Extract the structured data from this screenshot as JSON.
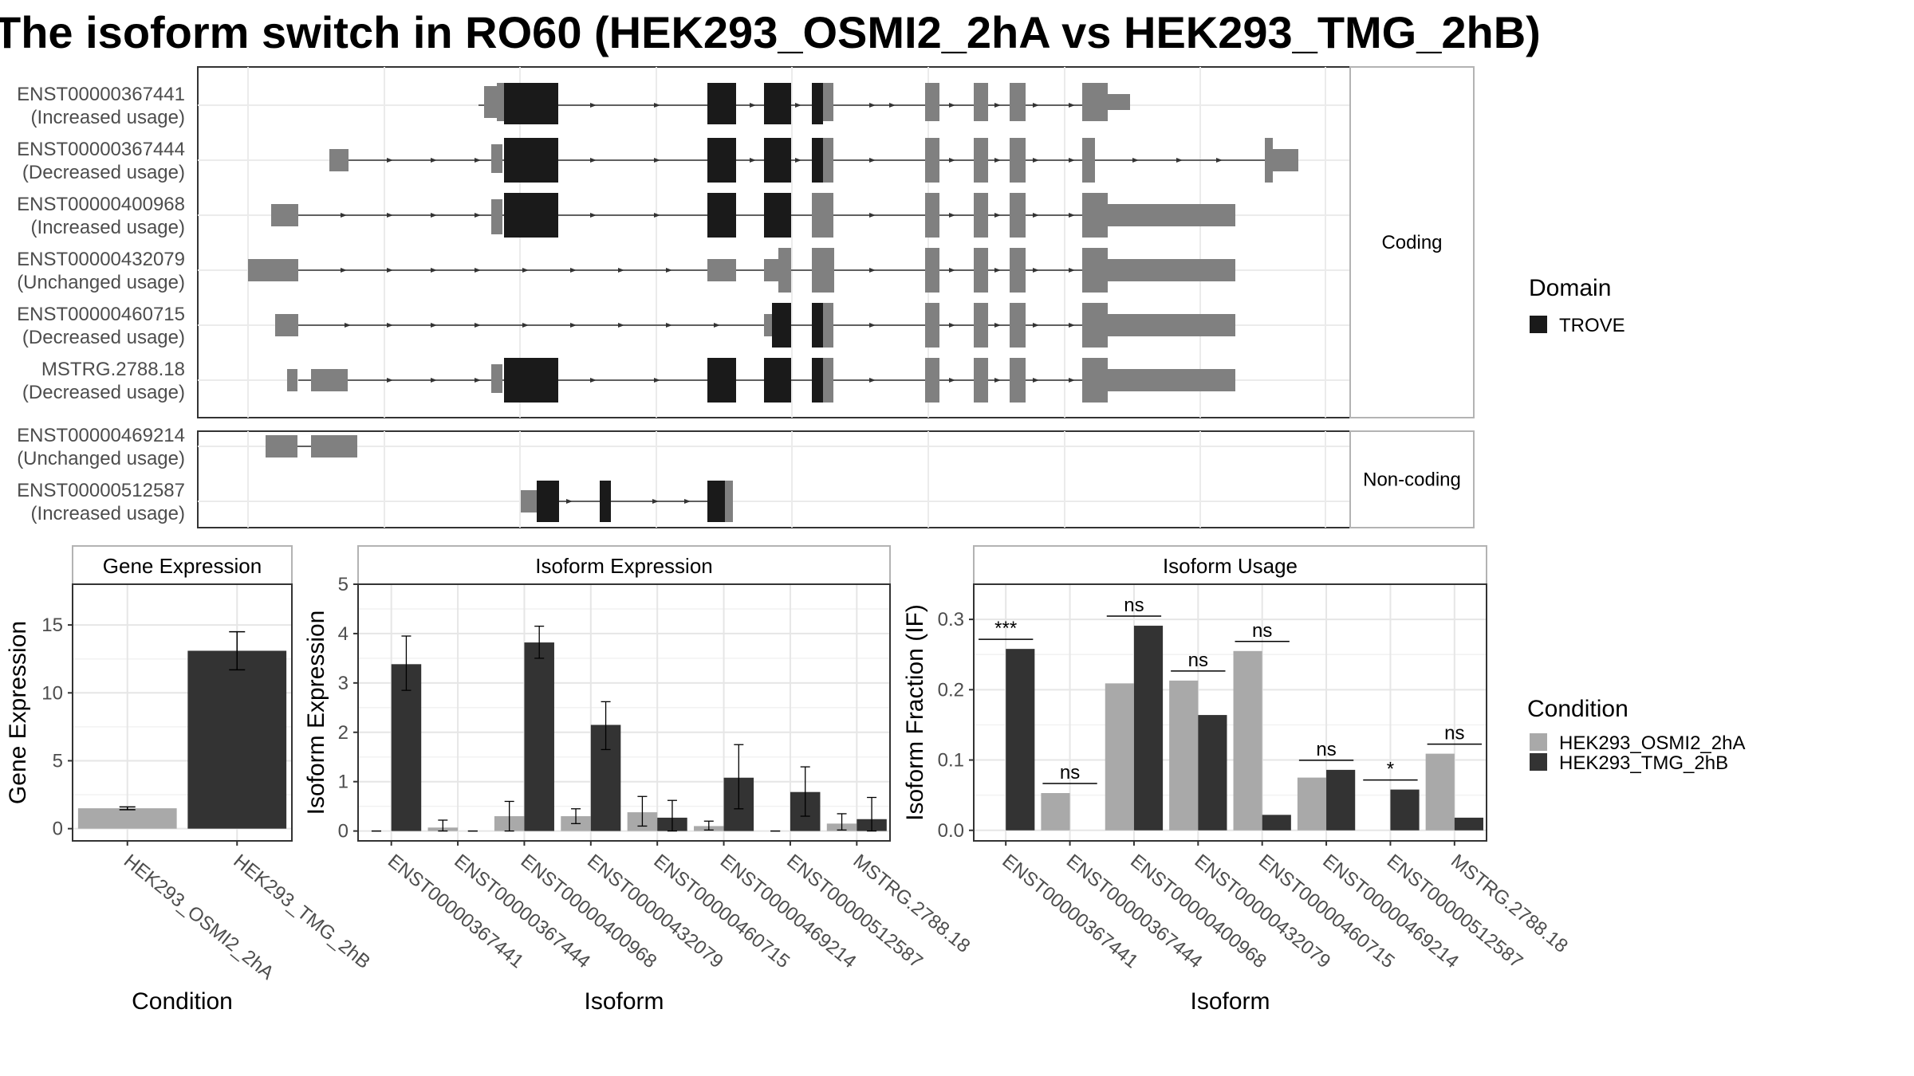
{
  "title": "The isoform switch in RO60 (HEK293_OSMI2_2hA vs HEK293_TMG_2hB)",
  "colors": {
    "domain": "#1a1a1a",
    "transcript": "#808080",
    "condition_a": "#a9a9a9",
    "condition_b": "#333333"
  },
  "structure": {
    "panels": [
      {
        "label": "Coding",
        "transcripts": [
          {
            "id": "ENST00000367441",
            "usage": "(Increased usage)"
          },
          {
            "id": "ENST00000367444",
            "usage": "(Decreased usage)"
          },
          {
            "id": "ENST00000400968",
            "usage": "(Increased usage)"
          },
          {
            "id": "ENST00000432079",
            "usage": "(Unchanged usage)"
          },
          {
            "id": "ENST00000460715",
            "usage": "(Decreased usage)"
          },
          {
            "id": "MSTRG.2788.18",
            "usage": "(Decreased usage)"
          }
        ]
      },
      {
        "label": "Non-coding",
        "transcripts": [
          {
            "id": "ENST00000469214",
            "usage": "(Unchanged usage)"
          },
          {
            "id": "ENST00000512587",
            "usage": "(Increased usage)"
          }
        ]
      }
    ]
  },
  "legends": {
    "domain": {
      "title": "Domain",
      "items": [
        "TROVE"
      ]
    },
    "condition": {
      "title": "Condition",
      "items": [
        "HEK293_OSMI2_2hA",
        "HEK293_TMG_2hB"
      ]
    }
  },
  "chart_data": [
    {
      "type": "bar",
      "title": "Gene Expression",
      "xlabel": "Condition",
      "ylabel": "Gene Expression",
      "categories": [
        "HEK293_OSMI2_2hA",
        "HEK293_TMG_2hB"
      ],
      "values": [
        1.5,
        13.1
      ],
      "error_low": [
        1.4,
        11.7
      ],
      "error_high": [
        1.6,
        14.5
      ],
      "ylim": [
        -0.9,
        18
      ],
      "yticks": [
        0,
        5,
        10,
        15
      ]
    },
    {
      "type": "bar",
      "title": "Isoform Expression",
      "xlabel": "Isoform",
      "ylabel": "Isoform Expression",
      "categories": [
        "ENST00000367441",
        "ENST00000367444",
        "ENST00000400968",
        "ENST00000432079",
        "ENST00000460715",
        "ENST00000469214",
        "ENST00000512587",
        "MSTRG.2788.18"
      ],
      "series": [
        {
          "name": "HEK293_OSMI2_2hA",
          "values": [
            0.0,
            0.07,
            0.3,
            0.3,
            0.38,
            0.1,
            0.0,
            0.15
          ],
          "error_low": [
            0.0,
            0.0,
            0.0,
            0.15,
            0.1,
            0.02,
            0.0,
            0.02
          ],
          "error_high": [
            0.0,
            0.22,
            0.6,
            0.45,
            0.7,
            0.2,
            0.0,
            0.35
          ]
        },
        {
          "name": "HEK293_TMG_2hB",
          "values": [
            3.38,
            0.0,
            3.82,
            2.15,
            0.27,
            1.08,
            0.79,
            0.24
          ],
          "error_low": [
            2.85,
            0.0,
            3.5,
            1.65,
            0.0,
            0.45,
            0.3,
            0.0
          ],
          "error_high": [
            3.95,
            0.0,
            4.15,
            2.62,
            0.62,
            1.75,
            1.3,
            0.68
          ]
        }
      ],
      "ylim": [
        -0.2,
        5
      ],
      "yticks": [
        0,
        1,
        2,
        3,
        4,
        5
      ]
    },
    {
      "type": "bar",
      "title": "Isoform Usage",
      "xlabel": "Isoform",
      "ylabel": "Isoform Fraction (IF)",
      "categories": [
        "ENST00000367441",
        "ENST00000367444",
        "ENST00000400968",
        "ENST00000432079",
        "ENST00000460715",
        "ENST00000469214",
        "ENST00000512587",
        "MSTRG.2788.18"
      ],
      "series": [
        {
          "name": "HEK293_OSMI2_2hA",
          "values": [
            0.0,
            0.053,
            0.209,
            0.213,
            0.255,
            0.075,
            0.0,
            0.109
          ]
        },
        {
          "name": "HEK293_TMG_2hB",
          "values": [
            0.258,
            0.0,
            0.291,
            0.164,
            0.022,
            0.086,
            0.058,
            0.018
          ]
        }
      ],
      "significance": [
        "***",
        "ns",
        "ns",
        "ns",
        "ns",
        "ns",
        "*",
        "ns"
      ],
      "ylim": [
        -0.015,
        0.35
      ],
      "yticks": [
        0.0,
        0.1,
        0.2,
        0.3
      ],
      "ytick_labels": [
        "0.0",
        "0.1",
        "0.2",
        "0.3"
      ]
    }
  ]
}
